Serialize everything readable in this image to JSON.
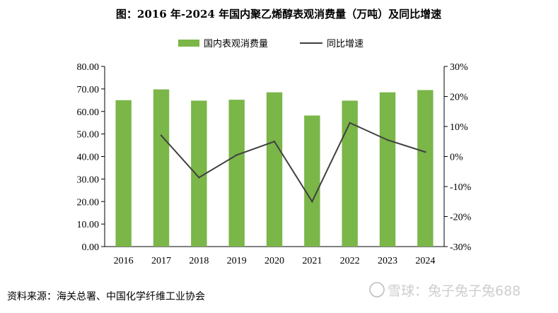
{
  "chart_data": {
    "type": "bar",
    "title": "图：2016 年-2024 年国内聚乙烯醇表观消费量（万吨）及同比增速",
    "categories": [
      "2016",
      "2017",
      "2018",
      "2019",
      "2020",
      "2021",
      "2022",
      "2023",
      "2024"
    ],
    "series": [
      {
        "name": "国内表观消费量",
        "type": "bar",
        "axis": "left",
        "color": "#7ab648",
        "values": [
          65.0,
          69.8,
          64.8,
          65.2,
          68.5,
          58.2,
          64.8,
          68.5,
          69.5
        ]
      },
      {
        "name": "同比增速",
        "type": "line",
        "axis": "right",
        "color": "#404040",
        "values": [
          null,
          7.0,
          -7.0,
          0.5,
          5.0,
          -15.0,
          11.2,
          5.5,
          1.5
        ]
      }
    ],
    "y_left": {
      "min": 0,
      "max": 80,
      "ticks": [
        0,
        10,
        20,
        30,
        40,
        50,
        60,
        70,
        80
      ],
      "tick_labels": [
        "0.00",
        "10.00",
        "20.00",
        "30.00",
        "40.00",
        "50.00",
        "60.00",
        "70.00",
        "80.00"
      ]
    },
    "y_right": {
      "min": -30,
      "max": 30,
      "ticks": [
        -30,
        -20,
        -10,
        0,
        10,
        20,
        30
      ],
      "tick_labels": [
        "-30%",
        "-20%",
        "-10%",
        "0%",
        "10%",
        "20%",
        "30%"
      ]
    },
    "grid": false,
    "legend_position": "top-center"
  },
  "source": "资料来源：海关总署、中国化学纤维工业协会",
  "watermark": "雪球：兔子兔子兔688"
}
